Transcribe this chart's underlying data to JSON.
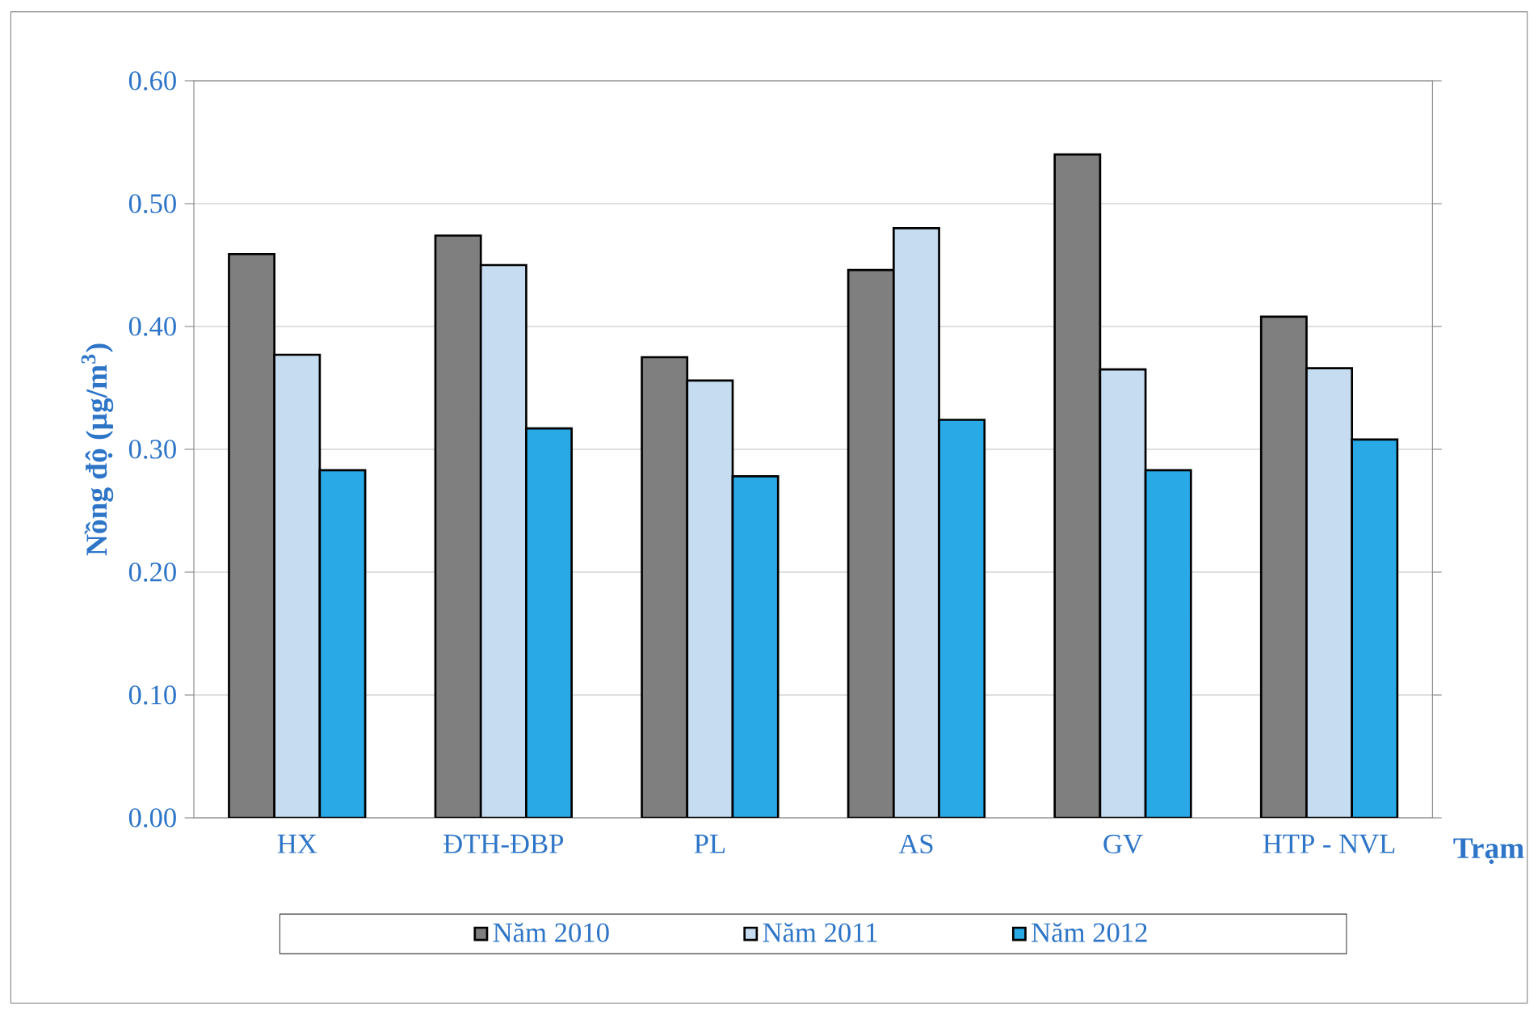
{
  "chart_data": {
    "type": "bar",
    "xlabel": "Trạm",
    "ylabel": "Nồng độ (µg/m$^{3}$)",
    "categories": [
      "HX",
      "ĐTH-ĐBP",
      "PL",
      "AS",
      "GV",
      "HTP - NVL"
    ],
    "series": [
      {
        "name": "Năm 2010",
        "color": "#7f7f7f",
        "values": [
          0.459,
          0.474,
          0.375,
          0.446,
          0.54,
          0.408
        ]
      },
      {
        "name": "Năm 2011",
        "color": "#c6dcf0",
        "values": [
          0.377,
          0.45,
          0.356,
          0.48,
          0.365,
          0.366
        ]
      },
      {
        "name": "Năm 2012",
        "color": "#29a9e6",
        "values": [
          0.283,
          0.317,
          0.278,
          0.324,
          0.283,
          0.308
        ]
      }
    ],
    "ylim": [
      0,
      0.6
    ],
    "yticks": [
      {
        "value": 0,
        "label": "0.00"
      },
      {
        "value": 0.1,
        "label": "0.10"
      },
      {
        "value": 0.2,
        "label": "0.20"
      },
      {
        "value": 0.3,
        "label": "0.30"
      },
      {
        "value": 0.4,
        "label": "0.40"
      },
      {
        "value": 0.5,
        "label": "0.50"
      },
      {
        "value": 0.6,
        "label": "0.60"
      }
    ],
    "grid": "y",
    "legend": "bottom"
  }
}
